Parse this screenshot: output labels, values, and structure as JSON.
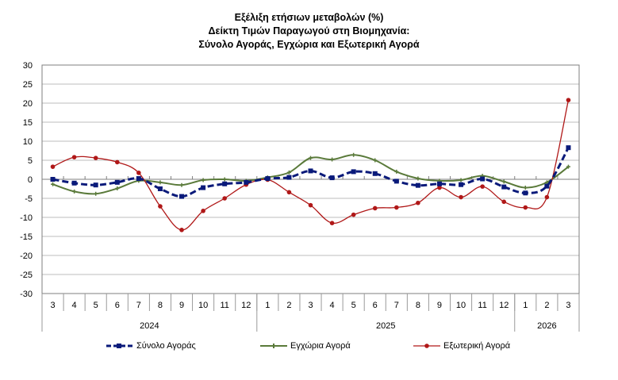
{
  "chart_data": {
    "type": "line",
    "title": [
      "Εξέλιξη ετήσιων μεταβολών (%)",
      "Δείκτη Τιμών Παραγωγού στη Βιομηχανία:",
      "Σύνολο Αγοράς, Εγχώρια και Εξωτερική Αγορά"
    ],
    "xlabel": "",
    "ylabel": "",
    "ylim": [
      -30,
      30
    ],
    "yticks": [
      30,
      25,
      20,
      15,
      10,
      5,
      0,
      -5,
      -10,
      -15,
      -20,
      -25,
      -30
    ],
    "grid": true,
    "legend_position": "bottom",
    "categories": [
      "3",
      "4",
      "5",
      "6",
      "7",
      "8",
      "9",
      "10",
      "11",
      "12",
      "1",
      "2",
      "3",
      "4",
      "5",
      "6",
      "7",
      "8",
      "9",
      "10",
      "11",
      "12",
      "1",
      "2",
      "3"
    ],
    "year_groups": [
      {
        "label": "2024",
        "count": 10
      },
      {
        "label": "2025",
        "count": 12
      },
      {
        "label": "2026",
        "count": 3
      }
    ],
    "series": [
      {
        "name": "Σύνολο Αγοράς",
        "color": "#0a1a7a",
        "style": "dashed",
        "marker": "square",
        "values": [
          0.0,
          -1.0,
          -1.5,
          -0.8,
          0.2,
          -2.5,
          -4.5,
          -2.2,
          -1.2,
          -0.8,
          0.2,
          0.5,
          2.2,
          0.4,
          2.0,
          1.5,
          -0.5,
          -1.6,
          -1.2,
          -1.4,
          0.1,
          -2.0,
          -3.6,
          -1.8,
          8.3
        ]
      },
      {
        "name": "Εγχώρια Αγορά",
        "color": "#5a7a3a",
        "style": "solid",
        "marker": "plus",
        "values": [
          -1.3,
          -3.2,
          -3.8,
          -2.4,
          -0.4,
          -0.8,
          -1.5,
          -0.2,
          0.0,
          -0.4,
          0.5,
          1.8,
          5.6,
          5.2,
          6.4,
          5.0,
          2.0,
          0.2,
          -0.4,
          -0.2,
          0.9,
          -0.6,
          -2.2,
          -0.8,
          3.3
        ]
      },
      {
        "name": "Εξωτερική Αγορά",
        "color": "#b01818",
        "style": "solid",
        "marker": "circle",
        "values": [
          3.3,
          5.8,
          5.6,
          4.5,
          1.7,
          -7.1,
          -13.3,
          -8.3,
          -5.0,
          -1.4,
          -0.1,
          -3.4,
          -6.8,
          -11.5,
          -9.3,
          -7.6,
          -7.4,
          -6.2,
          -2.2,
          -4.7,
          -1.9,
          -5.9,
          -7.4,
          -4.7,
          20.8
        ]
      }
    ]
  }
}
